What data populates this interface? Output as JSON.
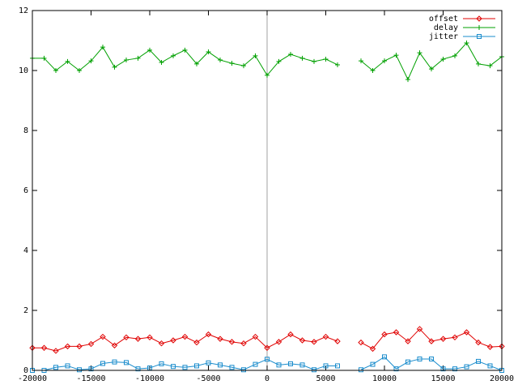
{
  "chart_data": {
    "type": "line",
    "x": [
      -20000,
      -19000,
      -18000,
      -17000,
      -16000,
      -15000,
      -14000,
      -13000,
      -12000,
      -11000,
      -10000,
      -9000,
      -8000,
      -7000,
      -6000,
      -5000,
      -4000,
      -3000,
      -2000,
      -1000,
      0,
      1000,
      2000,
      3000,
      4000,
      5000,
      6000,
      7000,
      8000,
      9000,
      10000,
      11000,
      12000,
      13000,
      14000,
      15000,
      16000,
      17000,
      18000,
      19000,
      20000
    ],
    "series": [
      {
        "name": "offset",
        "color": "#e00000",
        "marker": "diamond",
        "values": [
          0.75,
          0.75,
          0.65,
          0.8,
          0.8,
          0.88,
          1.12,
          0.83,
          1.1,
          1.05,
          1.1,
          0.9,
          1.0,
          1.12,
          0.93,
          1.2,
          1.05,
          0.95,
          0.9,
          1.12,
          0.75,
          0.95,
          1.2,
          1.0,
          0.95,
          1.12,
          0.97,
          null,
          0.93,
          0.72,
          1.2,
          1.27,
          0.97,
          1.38,
          0.97,
          1.05,
          1.1,
          1.27,
          0.93,
          0.78,
          0.8
        ]
      },
      {
        "name": "delay",
        "color": "#00a000",
        "marker": "plus",
        "values": [
          10.41,
          10.41,
          10.0,
          10.3,
          10.0,
          10.32,
          10.78,
          10.11,
          10.35,
          10.41,
          10.68,
          10.27,
          10.49,
          10.68,
          10.22,
          10.62,
          10.35,
          10.24,
          10.16,
          10.49,
          9.84,
          10.3,
          10.54,
          10.41,
          10.3,
          10.38,
          10.19,
          null,
          10.32,
          10.0,
          10.32,
          10.51,
          9.7,
          10.59,
          10.05,
          10.38,
          10.49,
          10.92,
          10.22,
          10.16,
          10.46
        ]
      },
      {
        "name": "jitter",
        "color": "#1a8ccc",
        "marker": "square",
        "values": [
          0.0,
          0.0,
          0.1,
          0.15,
          0.02,
          0.05,
          0.23,
          0.28,
          0.26,
          0.05,
          0.08,
          0.22,
          0.13,
          0.1,
          0.15,
          0.25,
          0.18,
          0.1,
          0.02,
          0.2,
          0.37,
          0.18,
          0.22,
          0.18,
          0.02,
          0.15,
          0.15,
          null,
          0.02,
          0.2,
          0.45,
          0.05,
          0.28,
          0.38,
          0.38,
          0.05,
          0.05,
          0.12,
          0.3,
          0.15,
          0.0
        ]
      }
    ],
    "xlim": [
      -20000,
      20000
    ],
    "xticks": [
      -20000,
      -15000,
      -10000,
      -5000,
      0,
      5000,
      10000,
      15000,
      20000
    ],
    "ylim": [
      0,
      12
    ],
    "yticks": [
      0,
      2,
      4,
      6,
      8,
      10,
      12
    ],
    "legend": "upper right",
    "zero_axis": true
  }
}
